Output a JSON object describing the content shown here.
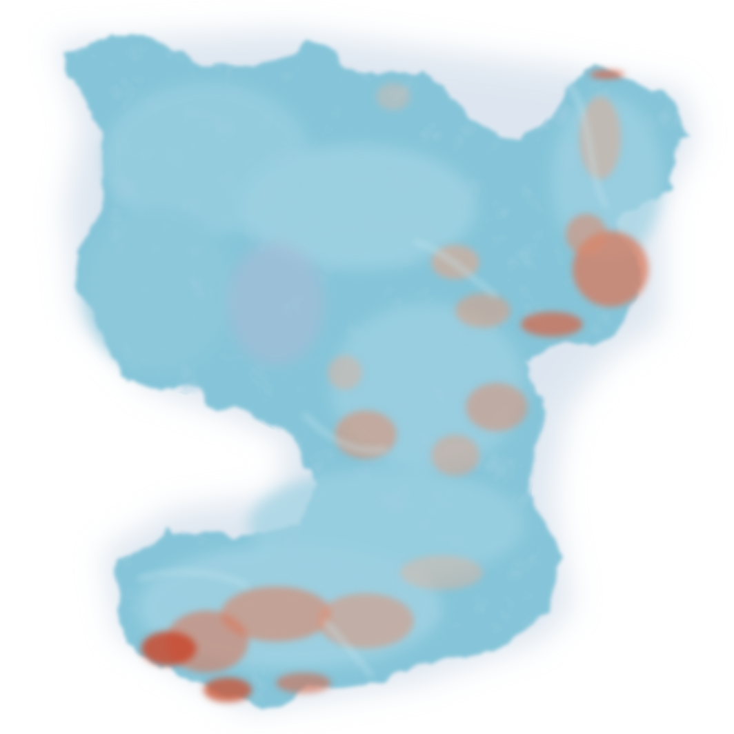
{
  "scene": {
    "background": "#ffffff",
    "volume_rendering": {
      "subject": "turbulent-plume-volume",
      "colormap": {
        "low": "#7fc3d8",
        "mid": "#9fd2e2",
        "high": "#d9664a",
        "peak": "#c94a30",
        "haze": "#b9c7dc"
      }
    }
  }
}
